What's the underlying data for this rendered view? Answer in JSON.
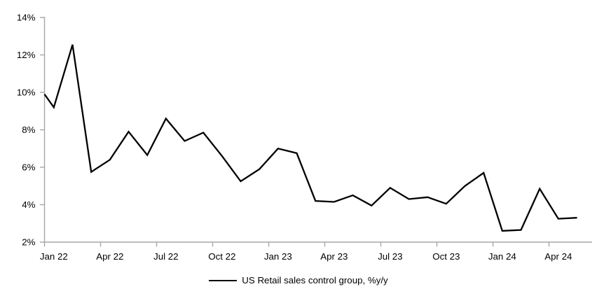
{
  "chart_data": {
    "type": "line",
    "title": "",
    "grid": false,
    "legend": {
      "label": "US Retail sales control group, %y/y",
      "position": "bottom-center"
    },
    "colors": {
      "series": "#000000",
      "axis": "#a6a6a6",
      "text": "#000000",
      "background": "#ffffff"
    },
    "y_axis": {
      "min": 2,
      "max": 14,
      "step": 2,
      "tick_labels": [
        "2%",
        "4%",
        "6%",
        "8%",
        "10%",
        "12%",
        "14%"
      ],
      "unit": "percent"
    },
    "x_axis": {
      "tick_labels": [
        "Jan 22",
        "Apr 22",
        "Jul 22",
        "Oct 22",
        "Jan 23",
        "Apr 23",
        "Jul 23",
        "Oct 23",
        "Jan 24",
        "Apr 24"
      ],
      "tick_interval_months": 3,
      "ticks_between_categories": true
    },
    "axis_entry_value": 9.9,
    "series": [
      {
        "name": "US Retail sales control group, %y/y",
        "x": [
          "Jan 22",
          "Feb 22",
          "Mar 22",
          "Apr 22",
          "May 22",
          "Jun 22",
          "Jul 22",
          "Aug 22",
          "Sep 22",
          "Oct 22",
          "Nov 22",
          "Dec 22",
          "Jan 23",
          "Feb 23",
          "Mar 23",
          "Apr 23",
          "May 23",
          "Jun 23",
          "Jul 23",
          "Aug 23",
          "Sep 23",
          "Oct 23",
          "Nov 23",
          "Dec 23",
          "Jan 24",
          "Feb 24",
          "Mar 24",
          "Apr 24",
          "May 24"
        ],
        "values": [
          9.2,
          12.55,
          5.75,
          6.4,
          7.9,
          6.65,
          8.6,
          7.4,
          7.85,
          6.6,
          5.25,
          5.9,
          7.0,
          6.75,
          4.2,
          4.15,
          4.5,
          3.95,
          4.9,
          4.3,
          4.4,
          4.05,
          5.0,
          5.7,
          2.6,
          2.65,
          4.85,
          3.25,
          3.3
        ]
      }
    ]
  }
}
